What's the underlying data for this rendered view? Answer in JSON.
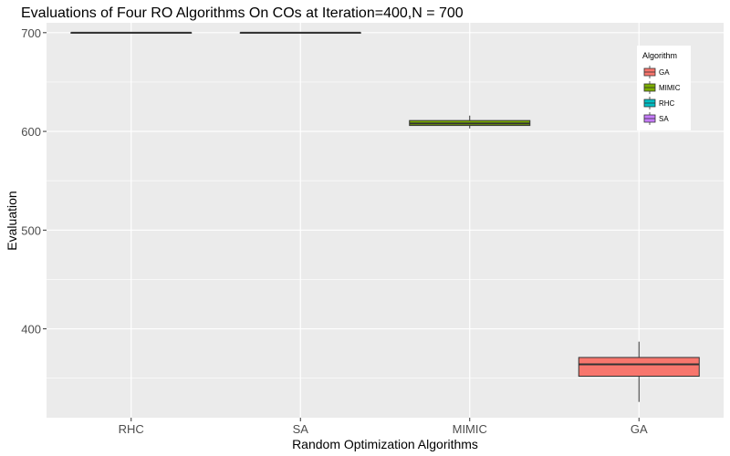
{
  "chart_data": {
    "type": "boxplot",
    "title": "Evaluations of Four RO Algorithms On COs at Iteration=400,N = 700",
    "xlabel": "Random Optimization Algorithms",
    "ylabel": "Evaluation",
    "categories": [
      "RHC",
      "SA",
      "MIMIC",
      "GA"
    ],
    "y_ticks": [
      400,
      500,
      600,
      700
    ],
    "ylim": [
      310,
      710
    ],
    "grid": true,
    "legend": {
      "title": "Algorithm",
      "placement": "top-right",
      "entries": [
        "GA",
        "MIMIC",
        "RHC",
        "SA"
      ]
    },
    "colors": {
      "GA": "#f8766d",
      "MIMIC": "#7cae00",
      "RHC": "#00bfc4",
      "SA": "#c77cff",
      "panel_bg": "#ebebeb",
      "grid_major": "#ffffff",
      "text": "#000000",
      "tick_text": "#4d4d4d"
    },
    "series": [
      {
        "category": "RHC",
        "group": "RHC",
        "min": 700,
        "q1": 700,
        "median": 700,
        "q3": 700,
        "max": 700
      },
      {
        "category": "SA",
        "group": "SA",
        "min": 700,
        "q1": 700,
        "median": 700,
        "q3": 700,
        "max": 700
      },
      {
        "category": "MIMIC",
        "group": "MIMIC",
        "min": 603,
        "q1": 606,
        "median": 608,
        "q3": 611,
        "max": 616
      },
      {
        "category": "GA",
        "group": "GA",
        "min": 326,
        "q1": 352,
        "median": 364,
        "q3": 371,
        "max": 387
      }
    ]
  }
}
